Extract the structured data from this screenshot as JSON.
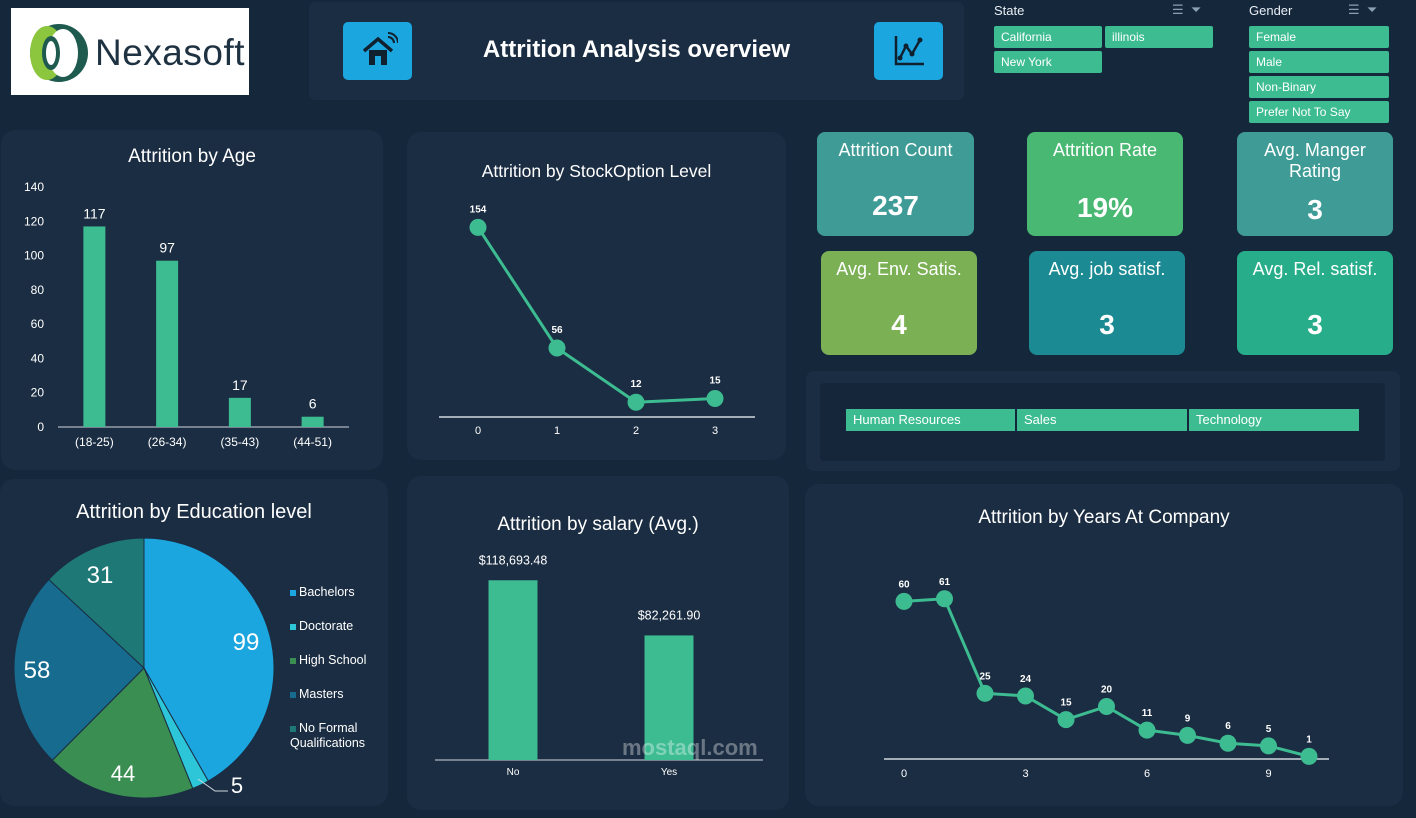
{
  "brand": {
    "logo_text": "Nexasoft"
  },
  "header": {
    "title": "Attrition Analysis overview"
  },
  "slicers": {
    "state": {
      "title": "State",
      "items": [
        "California",
        "illinois",
        "New York"
      ]
    },
    "gender": {
      "title": "Gender",
      "items": [
        "Female",
        "Male",
        "Non-Binary",
        "Prefer Not To Say"
      ]
    },
    "department": {
      "items": [
        "Human Resources",
        "Sales",
        "Technology"
      ]
    }
  },
  "kpis": [
    {
      "label": "Attrition Count",
      "value": "237",
      "color": "#3f9b96"
    },
    {
      "label": "Attrition Rate",
      "value": "19%",
      "color": "#49b872"
    },
    {
      "label": "Avg. Manger Rating",
      "value": "3",
      "color": "#3f9b96"
    },
    {
      "label": "Avg. Env. Satis.",
      "value": "4",
      "color": "#7bb055"
    },
    {
      "label": "Avg. job satisf.",
      "value": "3",
      "color": "#1b8a92"
    },
    {
      "label": "Avg. Rel. satisf.",
      "value": "3",
      "color": "#28ad8b"
    }
  ],
  "chart_data": [
    {
      "id": "age",
      "type": "bar",
      "title": "Attrition by Age",
      "categories": [
        "(18-25)",
        "(26-34)",
        "(35-43)",
        "(44-51)"
      ],
      "values": [
        117,
        97,
        17,
        6
      ],
      "ylim": [
        0,
        140
      ],
      "yticks": [
        0,
        20,
        40,
        60,
        80,
        100,
        120,
        140
      ],
      "color": "#3dbc92"
    },
    {
      "id": "stock",
      "type": "line",
      "title": "Attrition by StockOption Level",
      "x": [
        0,
        1,
        2,
        3
      ],
      "values": [
        154,
        56,
        12,
        15
      ],
      "ylim": [
        0,
        190
      ],
      "color": "#3dbc92"
    },
    {
      "id": "education",
      "type": "pie",
      "title": "Attrition by Education level",
      "categories": [
        "Bachelors",
        "Doctorate",
        "High School",
        "Masters",
        "No Formal Qualifications"
      ],
      "values": [
        99,
        5,
        44,
        58,
        31
      ],
      "colors": [
        "#1ca6e0",
        "#2cc6d8",
        "#3a8e52",
        "#176b8e",
        "#1d7876"
      ]
    },
    {
      "id": "salary",
      "type": "bar",
      "title": "Attrition by salary (Avg.)",
      "categories": [
        "No",
        "Yes"
      ],
      "values": [
        118693.48,
        82261.9
      ],
      "labels": [
        "$118,693.48",
        "$82,261.90"
      ],
      "ylim": [
        0,
        140000
      ],
      "color": "#3dbc92"
    },
    {
      "id": "years",
      "type": "line",
      "title": "Attrition by Years At Company",
      "x": [
        0,
        1,
        2,
        3,
        4,
        5,
        6,
        7,
        8,
        9,
        10
      ],
      "xticks": [
        "0",
        "3",
        "6",
        "9"
      ],
      "values": [
        60,
        61,
        25,
        24,
        15,
        20,
        11,
        9,
        6,
        5,
        1
      ],
      "ylim": [
        0,
        75
      ],
      "color": "#3dbc92"
    }
  ],
  "watermark": "mostaql.com"
}
